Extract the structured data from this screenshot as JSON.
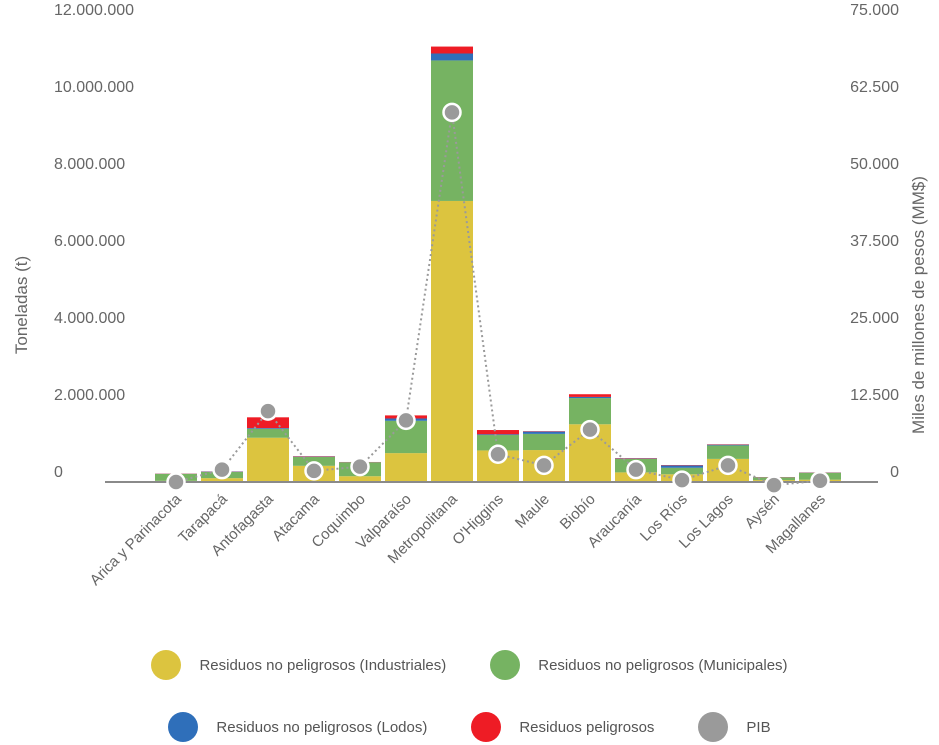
{
  "chart_data": {
    "type": "bar",
    "stacked": true,
    "categories": [
      "Arica y Parinacota",
      "Tarapacá",
      "Antofagasta",
      "Atacama",
      "Coquimbo",
      "Valparaíso",
      "Metropolitana",
      "O'Higgins",
      "Maule",
      "Biobío",
      "Araucanía",
      "Los Ríos",
      "Los Lagos",
      "Aysén",
      "Magallanes"
    ],
    "series": [
      {
        "name": "Residuos no peligrosos (Industriales)",
        "color": "#dcc43f",
        "axis": "left",
        "values": [
          30000,
          100000,
          1150000,
          420000,
          150000,
          750000,
          7300000,
          820000,
          830000,
          1500000,
          250000,
          200000,
          600000,
          50000,
          60000
        ]
      },
      {
        "name": "Residuos no peligrosos (Municipales)",
        "color": "#76b362",
        "axis": "left",
        "values": [
          180000,
          160000,
          230000,
          230000,
          360000,
          840000,
          3650000,
          400000,
          420000,
          680000,
          350000,
          170000,
          350000,
          70000,
          180000
        ]
      },
      {
        "name": "Residuos no peligrosos (Lodos)",
        "color": "#2f6fba",
        "axis": "left",
        "values": [
          5000,
          10000,
          20000,
          10000,
          5000,
          60000,
          180000,
          20000,
          60000,
          30000,
          10000,
          60000,
          20000,
          5000,
          5000
        ]
      },
      {
        "name": "Residuos peligrosos",
        "color": "#ee1c25",
        "axis": "left",
        "values": [
          5000,
          5000,
          280000,
          10000,
          5000,
          80000,
          180000,
          110000,
          10000,
          70000,
          10000,
          10000,
          10000,
          5000,
          5000
        ]
      },
      {
        "name": "PIB",
        "color": "#9a9a9a",
        "axis": "right",
        "type": "line",
        "values": [
          0,
          2000,
          11500,
          1800,
          2500,
          10000,
          60000,
          4500,
          2700,
          8500,
          2000,
          300,
          2700,
          -500,
          200
        ]
      }
    ],
    "ylabel": "Toneladas (t)",
    "y2label": "Miles de millones de pesos (MM$)",
    "ylim": [
      0,
      12000000
    ],
    "y2lim": [
      0,
      75000
    ],
    "yticks": [
      "0",
      "2.000.000",
      "4.000.000",
      "6.000.000",
      "8.000.000",
      "10.000.000",
      "12.000.000"
    ],
    "y2ticks": [
      "0",
      "12.500",
      "25.000",
      "37.500",
      "50.000",
      "62.500",
      "75.000"
    ],
    "grid": false,
    "legend_position": "bottom"
  },
  "legend": {
    "row1": [
      {
        "label": "Residuos no peligrosos (Industriales)",
        "color": "#dcc43f"
      },
      {
        "label": "Residuos no peligrosos (Municipales)",
        "color": "#76b362"
      }
    ],
    "row2": [
      {
        "label": "Residuos no peligrosos (Lodos)",
        "color": "#2f6fba"
      },
      {
        "label": "Residuos peligrosos",
        "color": "#ee1c25"
      },
      {
        "label": "PIB",
        "color": "#9a9a9a"
      }
    ]
  }
}
